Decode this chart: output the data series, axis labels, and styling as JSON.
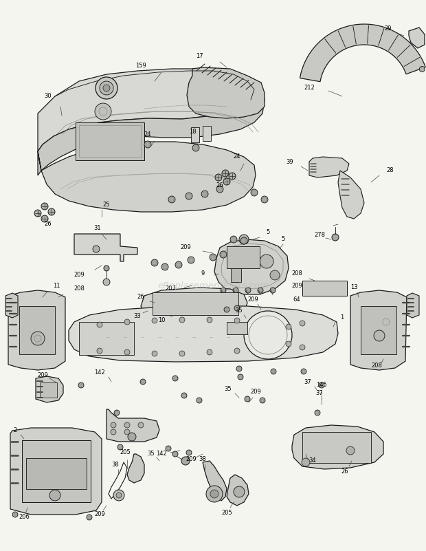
{
  "bg_color": "#f5f5f0",
  "line_color": "#1a1a1a",
  "label_color": "#000000",
  "watermark": "eReplacementParts.com",
  "watermark_color": "#bbbbbb",
  "fig_width": 6.2,
  "fig_height": 8.01,
  "dpi": 100,
  "lw": 0.9,
  "fs": 6.0
}
